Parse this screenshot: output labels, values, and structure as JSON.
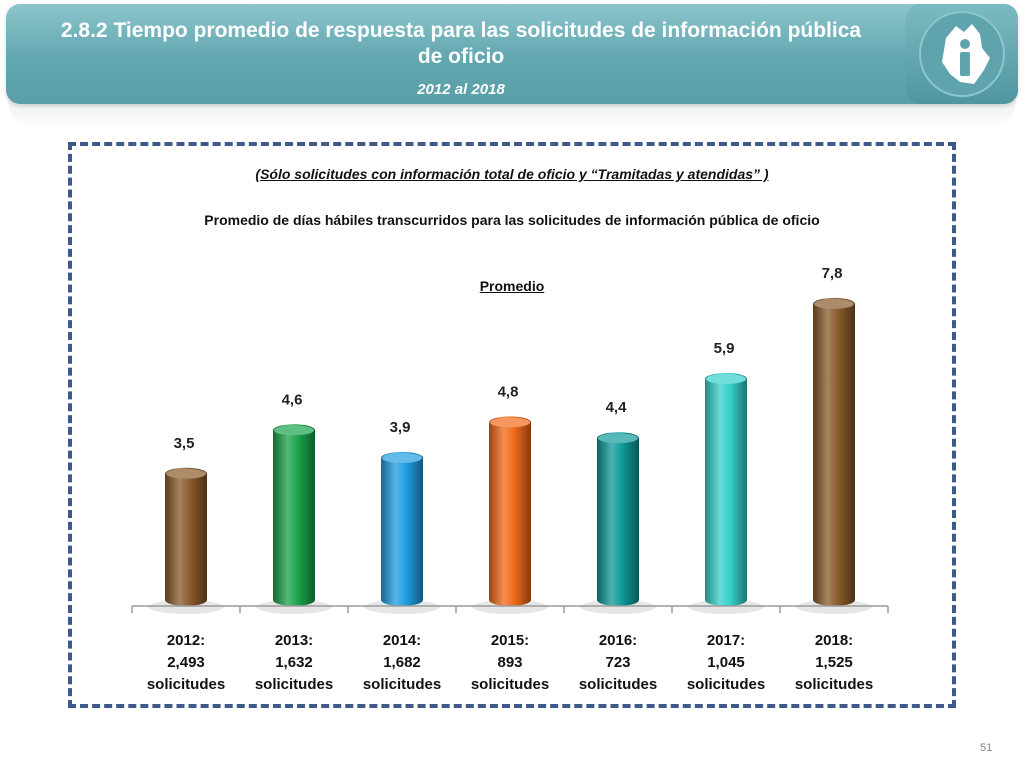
{
  "header": {
    "title": "2.8.2 Tiempo promedio de respuesta para las solicitudes de información pública de oficio",
    "subtitle": "2012 al 2018"
  },
  "note": "(Sólo solicitudes con información total de oficio y “Tramitadas y atendidas” )",
  "page_number": "51",
  "colors": {
    "header_bg": "#62a6b0",
    "frame_border": "#3d5a8a"
  },
  "chart_data": {
    "type": "bar",
    "title": "Promedio de días hábiles transcurridos para las solicitudes de información pública de oficio",
    "series_label": "Promedio",
    "categories": [
      "2012: 2,493 solicitudes",
      "2013: 1,632 solicitudes",
      "2014: 1,682 solicitudes",
      "2015: 893 solicitudes",
      "2016: 723 solicitudes",
      "2017: 1,045 solicitudes",
      "2018: 1,525 solicitudes"
    ],
    "category_lines": [
      [
        "2012:",
        "2,493",
        "solicitudes"
      ],
      [
        "2013:",
        "1,632",
        "solicitudes"
      ],
      [
        "2014:",
        "1,682",
        "solicitudes"
      ],
      [
        "2015:",
        "893",
        "solicitudes"
      ],
      [
        "2016:",
        "723",
        "solicitudes"
      ],
      [
        "2017:",
        "1,045",
        "solicitudes"
      ],
      [
        "2018:",
        "1,525",
        "solicitudes"
      ]
    ],
    "values": [
      3.5,
      4.6,
      3.9,
      4.8,
      4.4,
      5.9,
      7.8
    ],
    "value_labels": [
      "3,5",
      "4,6",
      "3,9",
      "4,8",
      "4,4",
      "5,9",
      "7,8"
    ],
    "bar_colors": [
      "#8a5a2b",
      "#1aa34a",
      "#1e9ee0",
      "#f06a1a",
      "#0f9a9a",
      "#35d0cc",
      "#8a5a2b"
    ],
    "ylim": [
      0,
      8
    ],
    "grid": false,
    "legend": "none"
  }
}
